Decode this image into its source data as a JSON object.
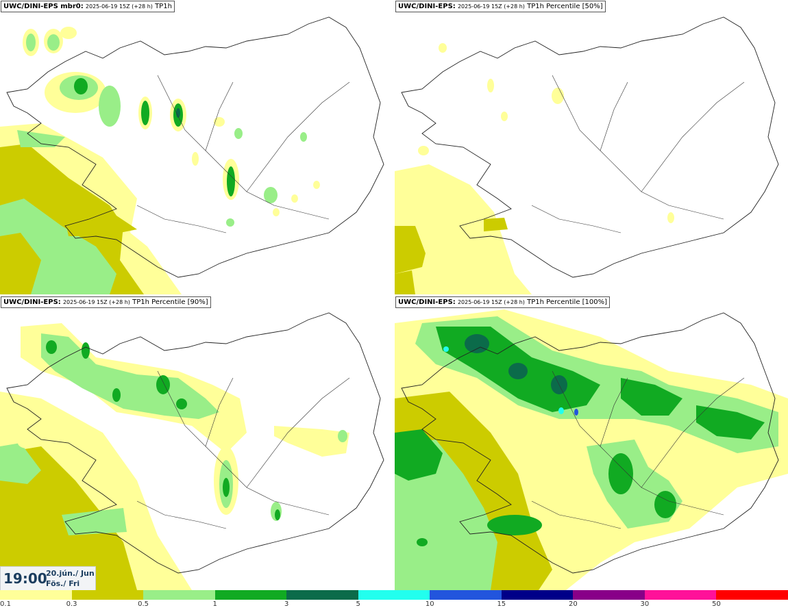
{
  "panels": [
    {
      "model": "UWC/DINI-EPS mbr0:",
      "run": "2025-06-19 15Z (+28 h)",
      "product": "TP1h"
    },
    {
      "model": "UWC/DINI-EPS:",
      "run": "2025-06-19 15Z (+28 h)",
      "product": "TP1h Percentile [50%]"
    },
    {
      "model": "UWC/DINI-EPS:",
      "run": "2025-06-19 15Z (+28 h)",
      "product": "TP1h Percentile [90%]"
    },
    {
      "model": "UWC/DINI-EPS:",
      "run": "2025-06-19 15Z (+28 h)",
      "product": "TP1h Percentile [100%]"
    }
  ],
  "time": {
    "clock": "19:00",
    "date_line": "20.jún./ Jun",
    "day_line": "Fös./ Fri"
  },
  "legend": {
    "colors": [
      "#ffff99",
      "#cccc00",
      "#99ee88",
      "#11aa22",
      "#0b6b4a",
      "#22ffee",
      "#2255dd",
      "#000088",
      "#880088",
      "#ff1199",
      "#ff0000"
    ],
    "labels": [
      "0.1",
      "0.3",
      "0.5",
      "1",
      "3",
      "5",
      "10",
      "15",
      "20",
      "30",
      "50"
    ]
  }
}
